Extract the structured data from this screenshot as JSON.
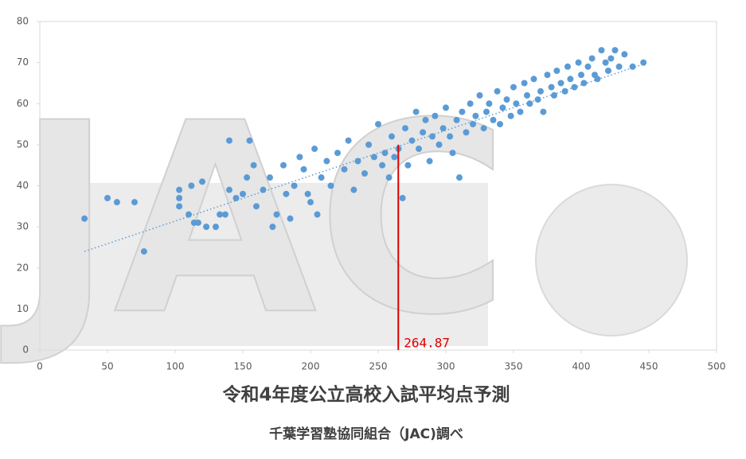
{
  "chart_data": {
    "type": "scatter",
    "title": "令和4年度公立高校入試平均点予測",
    "subtitle": "千葉学習塾協同組合（JAC)調べ",
    "watermark": "JAC",
    "color": "#5b9bd5",
    "xlim": [
      0,
      500
    ],
    "xticks": [
      0,
      50,
      100,
      150,
      200,
      250,
      300,
      350,
      400,
      450,
      500
    ],
    "ylim": [
      0,
      80
    ],
    "yticks": [
      0,
      10,
      20,
      30,
      40,
      50,
      60,
      70,
      80
    ],
    "grid": false,
    "x": [
      33,
      50,
      57,
      70,
      77,
      103,
      103,
      103,
      110,
      112,
      114,
      117,
      120,
      123,
      130,
      133,
      137,
      140,
      140,
      145,
      150,
      153,
      155,
      158,
      160,
      165,
      170,
      172,
      175,
      180,
      182,
      185,
      188,
      192,
      195,
      198,
      200,
      203,
      205,
      208,
      212,
      215,
      220,
      225,
      228,
      232,
      235,
      240,
      243,
      247,
      250,
      253,
      255,
      258,
      260,
      262,
      265,
      268,
      270,
      272,
      275,
      278,
      280,
      283,
      285,
      288,
      290,
      292,
      295,
      298,
      300,
      303,
      305,
      308,
      310,
      312,
      315,
      318,
      320,
      322,
      325,
      328,
      330,
      332,
      335,
      338,
      340,
      342,
      345,
      348,
      350,
      352,
      355,
      358,
      360,
      362,
      365,
      368,
      370,
      372,
      375,
      378,
      380,
      382,
      385,
      388,
      390,
      392,
      395,
      398,
      400,
      402,
      405,
      408,
      410,
      412,
      415,
      418,
      420,
      422,
      425,
      428,
      432,
      438,
      446
    ],
    "values": [
      32,
      37,
      36,
      36,
      24,
      39,
      37,
      35,
      33,
      40,
      31,
      31,
      41,
      30,
      30,
      33,
      33,
      51,
      39,
      37,
      38,
      42,
      51,
      45,
      35,
      39,
      42,
      30,
      33,
      45,
      38,
      32,
      40,
      47,
      44,
      38,
      36,
      49,
      33,
      42,
      46,
      40,
      48,
      44,
      51,
      39,
      46,
      43,
      50,
      47,
      55,
      45,
      48,
      42,
      52,
      47,
      49,
      37,
      54,
      45,
      51,
      58,
      49,
      53,
      56,
      46,
      52,
      57,
      50,
      54,
      59,
      52,
      48,
      56,
      42,
      58,
      53,
      60,
      55,
      57,
      62,
      54,
      58,
      60,
      56,
      63,
      55,
      59,
      61,
      57,
      64,
      60,
      58,
      65,
      62,
      60,
      66,
      61,
      63,
      58,
      67,
      64,
      62,
      68,
      65,
      63,
      69,
      66,
      64,
      70,
      67,
      65,
      69,
      71,
      67,
      66,
      73,
      70,
      68,
      71,
      73,
      69,
      72,
      69,
      70
    ],
    "trendline": {
      "color": "#5b9bd5",
      "x": [
        33,
        445
      ],
      "y": [
        24,
        69.5
      ]
    },
    "marker": {
      "x": 264.87,
      "y": 50,
      "label": "264.87",
      "color": "#e00000"
    }
  }
}
